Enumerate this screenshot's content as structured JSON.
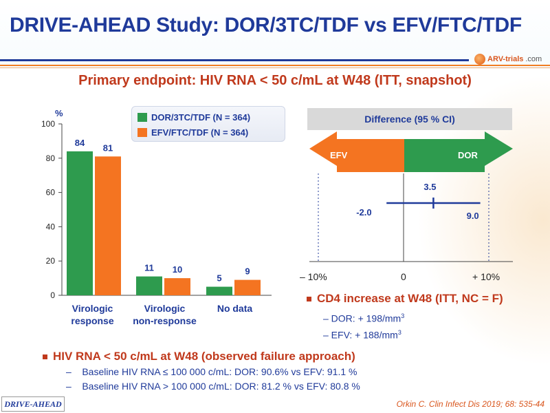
{
  "slide": {
    "title": "DRIVE-AHEAD Study: DOR/3TC/TDF vs EFV/FTC/TDF",
    "subtitle": "Primary endpoint: HIV RNA < 50 c/mL at W48 (ITT, snapshot)",
    "logo": {
      "icon": "arv-trials-logo-icon",
      "text_brand": "ARV-trials",
      "text_domain": ".com"
    },
    "footer_tag": "DRIVE-AHEAD",
    "citation": "Orkin C. Clin Infect Dis 2019; 68: 535-44"
  },
  "colors": {
    "dor": "#2e9b4e",
    "efv": "#f47421",
    "title_blue": "#1f3a9a",
    "accent_red": "#c0391c"
  },
  "chart_data": [
    {
      "type": "bar",
      "ylabel": "%",
      "ylim": [
        0,
        100
      ],
      "yticks": [
        "0",
        "20",
        "40",
        "60",
        "80",
        "100"
      ],
      "categories": [
        {
          "line1": "Virologic",
          "line2": "response"
        },
        {
          "line1": "Virologic",
          "line2": "non-response"
        },
        {
          "line1": "No data",
          "line2": ""
        }
      ],
      "series": [
        {
          "name": "DOR/3TC/TDF (N = 364)",
          "color": "#2e9b4e",
          "values": [
            84,
            11,
            5
          ]
        },
        {
          "name": "EFV/FTC/TDF (N = 364)",
          "color": "#f47421",
          "values": [
            81,
            10,
            9
          ]
        }
      ],
      "legend": "top-right"
    },
    {
      "type": "forest",
      "title": "Difference (95 % CI)",
      "arrow_left_label": "EFV",
      "arrow_right_label": "DOR",
      "xlim": [
        -10,
        10
      ],
      "xticks": [
        "– 10%",
        "0",
        "+ 10%"
      ],
      "estimate": 3.5,
      "ci": [
        -2.0,
        9.0
      ],
      "labels": {
        "estimate": "3.5",
        "lower": "-2.0",
        "upper": "9.0"
      }
    }
  ],
  "cd4": {
    "title": "CD4 increase at W48 (ITT, NC = F)",
    "lines": [
      {
        "text": "– DOR: + 198/mm",
        "sup": "3"
      },
      {
        "text": "– EFV: + 188/mm",
        "sup": "3"
      }
    ]
  },
  "observed": {
    "title": "HIV RNA < 50 c/mL at W48 (observed failure approach)",
    "lines": [
      "–    Baseline HIV RNA ≤ 100 000 c/mL: DOR: 90.6% vs EFV: 91.1 %",
      "–    Baseline HIV RNA > 100 000 c/mL: DOR: 81.2 % vs EFV: 80.8 %"
    ]
  }
}
